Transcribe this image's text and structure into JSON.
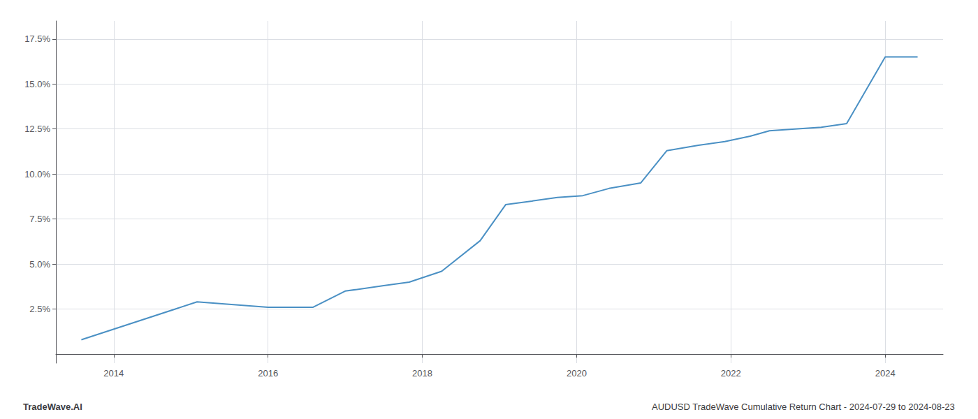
{
  "chart_data": {
    "type": "line",
    "title": "AUDUSD TradeWave Cumulative Return Chart - 2024-07-29 to 2024-08-23",
    "annotations": [
      "TradeWave.AI"
    ],
    "x": [
      2013.58,
      2015.08,
      2016.0,
      2016.58,
      2017.0,
      2017.5,
      2017.83,
      2018.25,
      2018.75,
      2019.08,
      2019.42,
      2019.75,
      2020.08,
      2020.42,
      2020.83,
      2021.17,
      2021.58,
      2021.92,
      2022.25,
      2022.5,
      2022.83,
      2023.17,
      2023.5,
      2024.0,
      2024.42
    ],
    "values": [
      0.008,
      0.029,
      0.026,
      0.026,
      0.035,
      0.038,
      0.04,
      0.046,
      0.063,
      0.083,
      0.085,
      0.087,
      0.088,
      0.092,
      0.095,
      0.113,
      0.116,
      0.118,
      0.121,
      0.124,
      0.125,
      0.126,
      0.128,
      0.165,
      0.165
    ],
    "color": "#4a90c4",
    "xlim": [
      2013.25,
      2024.75
    ],
    "xticks": [
      2014,
      2016,
      2018,
      2020,
      2022,
      2024
    ],
    "ylim": [
      -0.005,
      0.185
    ],
    "yticks": [
      {
        "value": 0.025,
        "label": "2.5%"
      },
      {
        "value": 0.05,
        "label": "5.0%"
      },
      {
        "value": 0.075,
        "label": "7.5%"
      },
      {
        "value": 0.1,
        "label": "10.0%"
      },
      {
        "value": 0.125,
        "label": "12.5%"
      },
      {
        "value": 0.15,
        "label": "15.0%"
      },
      {
        "value": 0.175,
        "label": "17.5%"
      }
    ],
    "grid": true
  }
}
